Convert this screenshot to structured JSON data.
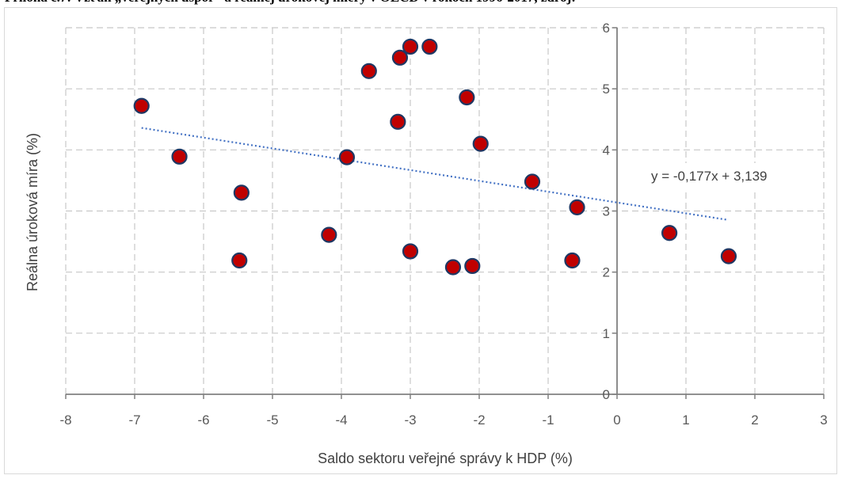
{
  "caption": "Príloha č.7: Vzťah „verejných úspor“ a reálnej úrokovej miery v OECD v rokoch 1996-2017, zdroj:",
  "chart_data": {
    "type": "scatter",
    "xlabel": "Saldo sektoru veřejné správy k HDP (%)",
    "ylabel": "Reálna úroková míra (%)",
    "xlim": [
      -8,
      3
    ],
    "ylim": [
      0,
      6
    ],
    "x_ticks": [
      "-8",
      "-7",
      "-6",
      "-5",
      "-4",
      "-3",
      "-2",
      "-1",
      "0",
      "1",
      "2",
      "3"
    ],
    "y_ticks": [
      "0",
      "1",
      "2",
      "3",
      "4",
      "5",
      "6"
    ],
    "grid": true,
    "marker_color": "#c00000",
    "marker_edge": "#1f3864",
    "trendline_color": "#4472c4",
    "trendline": {
      "label": "y = -0,177x + 3,139",
      "slope": -0.177,
      "intercept": 3.139,
      "x_range": [
        -6.9,
        1.6
      ]
    },
    "points": [
      {
        "x": -6.9,
        "y": 4.72
      },
      {
        "x": -6.35,
        "y": 3.89
      },
      {
        "x": -5.45,
        "y": 3.3
      },
      {
        "x": -5.48,
        "y": 2.19
      },
      {
        "x": -4.18,
        "y": 2.61
      },
      {
        "x": -3.92,
        "y": 3.88
      },
      {
        "x": -3.6,
        "y": 5.29
      },
      {
        "x": -3.18,
        "y": 4.46
      },
      {
        "x": -3.15,
        "y": 5.51
      },
      {
        "x": -3.0,
        "y": 5.69
      },
      {
        "x": -2.72,
        "y": 5.69
      },
      {
        "x": -3.0,
        "y": 2.34
      },
      {
        "x": -2.38,
        "y": 2.08
      },
      {
        "x": -2.1,
        "y": 2.1
      },
      {
        "x": -2.18,
        "y": 4.86
      },
      {
        "x": -1.98,
        "y": 4.1
      },
      {
        "x": -1.23,
        "y": 3.48
      },
      {
        "x": -0.58,
        "y": 3.06
      },
      {
        "x": -0.65,
        "y": 2.19
      },
      {
        "x": 0.76,
        "y": 2.64
      },
      {
        "x": 1.62,
        "y": 2.26
      }
    ]
  }
}
